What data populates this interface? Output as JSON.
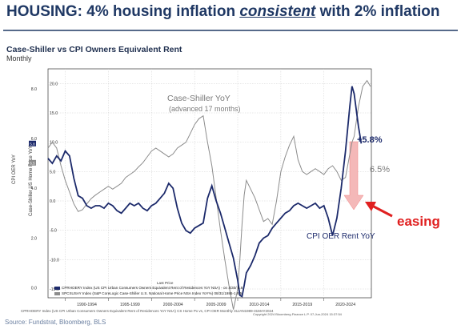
{
  "title_parts": {
    "before": "HOUSING: 4% housing inflation ",
    "emphasis": "consistent",
    "after": " with 2% inflation"
  },
  "subtitle": "Case-Shiller vs CPI Owners Equivalent Rent",
  "frequency": "Monthly",
  "source": "Source: Fundstrat, Bloomberg, BLS",
  "footnote": "CPRHOERY Index (US CPI Urban Consumers Owners Equivalent Rent of Residences YoY NSA) CS Home Px vs, CPI OER  Monthly 31JAN1989-31MAY2024",
  "copyright": "Copyright 2024 Bloomberg Finance L.P.      07-Jun-2024 15:37:54",
  "last_price_title": "Last Price",
  "legend": [
    {
      "text": "CPRHOERY Index (US CPI Urban Consumers Owners Equivalent Rent of Residences YoY NSA) - on 4/30/ 5.8",
      "color": "#1c2a6b"
    },
    {
      "text": "SPCSUSAY Index (S&P CoreLogic Case-Shiller U.S. National Home Price NSA Index YoY%) 08/31/1986-1   6.5",
      "color": "#8c8c8c"
    }
  ],
  "annotations": {
    "case_shiller_line1": "Case-Shiller YoY",
    "case_shiller_line2": "(advanced 17 months)",
    "oer_label": "CPI OER Rent YoY",
    "oer_last": "+5.8%",
    "cs_last": "6.5%",
    "easing": "easing"
  },
  "colors": {
    "title": "#1f3864",
    "oer": "#1c2a6b",
    "cs": "#8c8c8c",
    "easing": "#e02020",
    "arrow_fill": "#f4b8b8"
  },
  "chart_data": {
    "type": "line",
    "title": "Case-Shiller vs CPI Owners Equivalent Rent",
    "x_ticks": [
      "1990-1994",
      "1995-1999",
      "2000-2004",
      "2005-2009",
      "2010-2014",
      "2015-2019",
      "2020-2024"
    ],
    "x_range": [
      1988,
      2025.5
    ],
    "y_left": {
      "label": "CPI OER YoY",
      "ticks": [
        "8.0",
        "6.0",
        "4.0",
        "2.0",
        "0.0"
      ],
      "range": [
        -0.4,
        8.8
      ]
    },
    "y_right": {
      "label": "Case-Shiller US Home Price YoY",
      "ticks": [
        "20.0",
        "15.0",
        "10.0",
        "5.0",
        "0.0",
        "-5.0",
        "-10.0",
        "-15.0"
      ],
      "range": [
        -16.5,
        22.5
      ]
    },
    "left_axis_badges": [
      "5.8",
      "6.5"
    ],
    "series": [
      {
        "name": "CPI OER Rent YoY",
        "axis": "left",
        "x": [
          1988.0,
          1988.5,
          1989.0,
          1989.5,
          1990.0,
          1990.5,
          1991.0,
          1991.5,
          1992.0,
          1992.5,
          1993.0,
          1993.5,
          1994.0,
          1994.5,
          1995.0,
          1995.5,
          1996.0,
          1996.5,
          1997.0,
          1997.5,
          1998.0,
          1998.5,
          1999.0,
          1999.5,
          2000.0,
          2000.5,
          2001.0,
          2001.5,
          2002.0,
          2002.5,
          2003.0,
          2003.5,
          2004.0,
          2004.5,
          2005.0,
          2005.5,
          2006.0,
          2006.5,
          2007.0,
          2007.5,
          2008.0,
          2008.5,
          2009.0,
          2009.5,
          2010.0,
          2010.25,
          2010.5,
          2010.75,
          2011.0,
          2011.5,
          2012.0,
          2012.5,
          2013.0,
          2013.5,
          2014.0,
          2014.5,
          2015.0,
          2015.5,
          2016.0,
          2016.5,
          2017.0,
          2017.5,
          2018.0,
          2018.5,
          2019.0,
          2019.5,
          2020.0,
          2020.5,
          2021.0,
          2021.5,
          2022.0,
          2022.5,
          2023.0,
          2023.25,
          2023.5,
          2024.0,
          2024.33
        ],
        "y": [
          5.2,
          5.0,
          5.3,
          5.1,
          5.5,
          5.3,
          4.4,
          3.7,
          3.6,
          3.3,
          3.2,
          3.3,
          3.3,
          3.2,
          3.4,
          3.3,
          3.1,
          3.0,
          3.2,
          3.4,
          3.3,
          3.4,
          3.2,
          3.1,
          3.3,
          3.4,
          3.6,
          3.8,
          4.2,
          4.0,
          3.2,
          2.6,
          2.3,
          2.2,
          2.4,
          2.5,
          2.6,
          3.6,
          4.1,
          3.5,
          3.0,
          2.4,
          1.8,
          1.2,
          0.3,
          -0.3,
          -0.35,
          0.1,
          0.6,
          0.9,
          1.3,
          1.8,
          2.0,
          2.1,
          2.4,
          2.6,
          2.8,
          3.0,
          3.1,
          3.3,
          3.4,
          3.3,
          3.2,
          3.3,
          3.4,
          3.2,
          3.3,
          2.8,
          2.1,
          2.8,
          4.0,
          5.5,
          7.3,
          8.1,
          7.8,
          6.5,
          5.8
        ]
      },
      {
        "name": "Case-Shiller YoY (advanced 17 months)",
        "axis": "right",
        "x": [
          1988.0,
          1988.5,
          1989.0,
          1989.5,
          1990.0,
          1990.5,
          1991.0,
          1991.5,
          1992.0,
          1992.5,
          1993.0,
          1993.5,
          1994.0,
          1994.5,
          1995.0,
          1995.5,
          1996.0,
          1996.5,
          1997.0,
          1997.5,
          1998.0,
          1998.5,
          1999.0,
          1999.5,
          2000.0,
          2000.5,
          2001.0,
          2001.5,
          2002.0,
          2002.5,
          2003.0,
          2003.5,
          2004.0,
          2004.5,
          2005.0,
          2005.5,
          2006.0,
          2006.5,
          2007.0,
          2007.5,
          2008.0,
          2008.5,
          2009.0,
          2009.5,
          2010.0,
          2010.25,
          2010.5,
          2010.75,
          2011.0,
          2011.5,
          2012.0,
          2012.5,
          2013.0,
          2013.5,
          2014.0,
          2014.5,
          2015.0,
          2015.5,
          2016.0,
          2016.5,
          2017.0,
          2017.5,
          2018.0,
          2018.5,
          2019.0,
          2019.5,
          2020.0,
          2020.5,
          2021.0,
          2021.5,
          2022.0,
          2022.5,
          2023.0,
          2023.25,
          2023.5,
          2024.0,
          2024.5,
          2025.0,
          2025.4
        ],
        "y": [
          9.0,
          10.0,
          9.0,
          6.0,
          3.5,
          1.5,
          -0.5,
          -1.8,
          -1.5,
          -0.5,
          0.4,
          1.0,
          1.5,
          2.0,
          2.5,
          2.0,
          2.5,
          3.0,
          4.0,
          4.5,
          5.0,
          5.8,
          6.5,
          7.5,
          8.5,
          9.0,
          8.5,
          8.0,
          7.5,
          8.0,
          9.0,
          9.5,
          10.0,
          11.5,
          13.0,
          14.0,
          14.5,
          10.0,
          6.0,
          0.5,
          -5.0,
          -10.0,
          -14.5,
          -18.5,
          -15.0,
          -10.0,
          -4.0,
          1.0,
          3.5,
          2.0,
          0.5,
          -1.5,
          -3.5,
          -3.0,
          -4.0,
          0.0,
          5.0,
          7.5,
          9.5,
          11.0,
          7.0,
          5.0,
          4.5,
          5.0,
          5.5,
          5.0,
          4.5,
          5.5,
          6.0,
          5.0,
          3.5,
          4.0,
          8.0,
          10.0,
          11.0,
          16.0,
          19.5,
          20.5,
          19.5
        ]
      }
    ]
  }
}
